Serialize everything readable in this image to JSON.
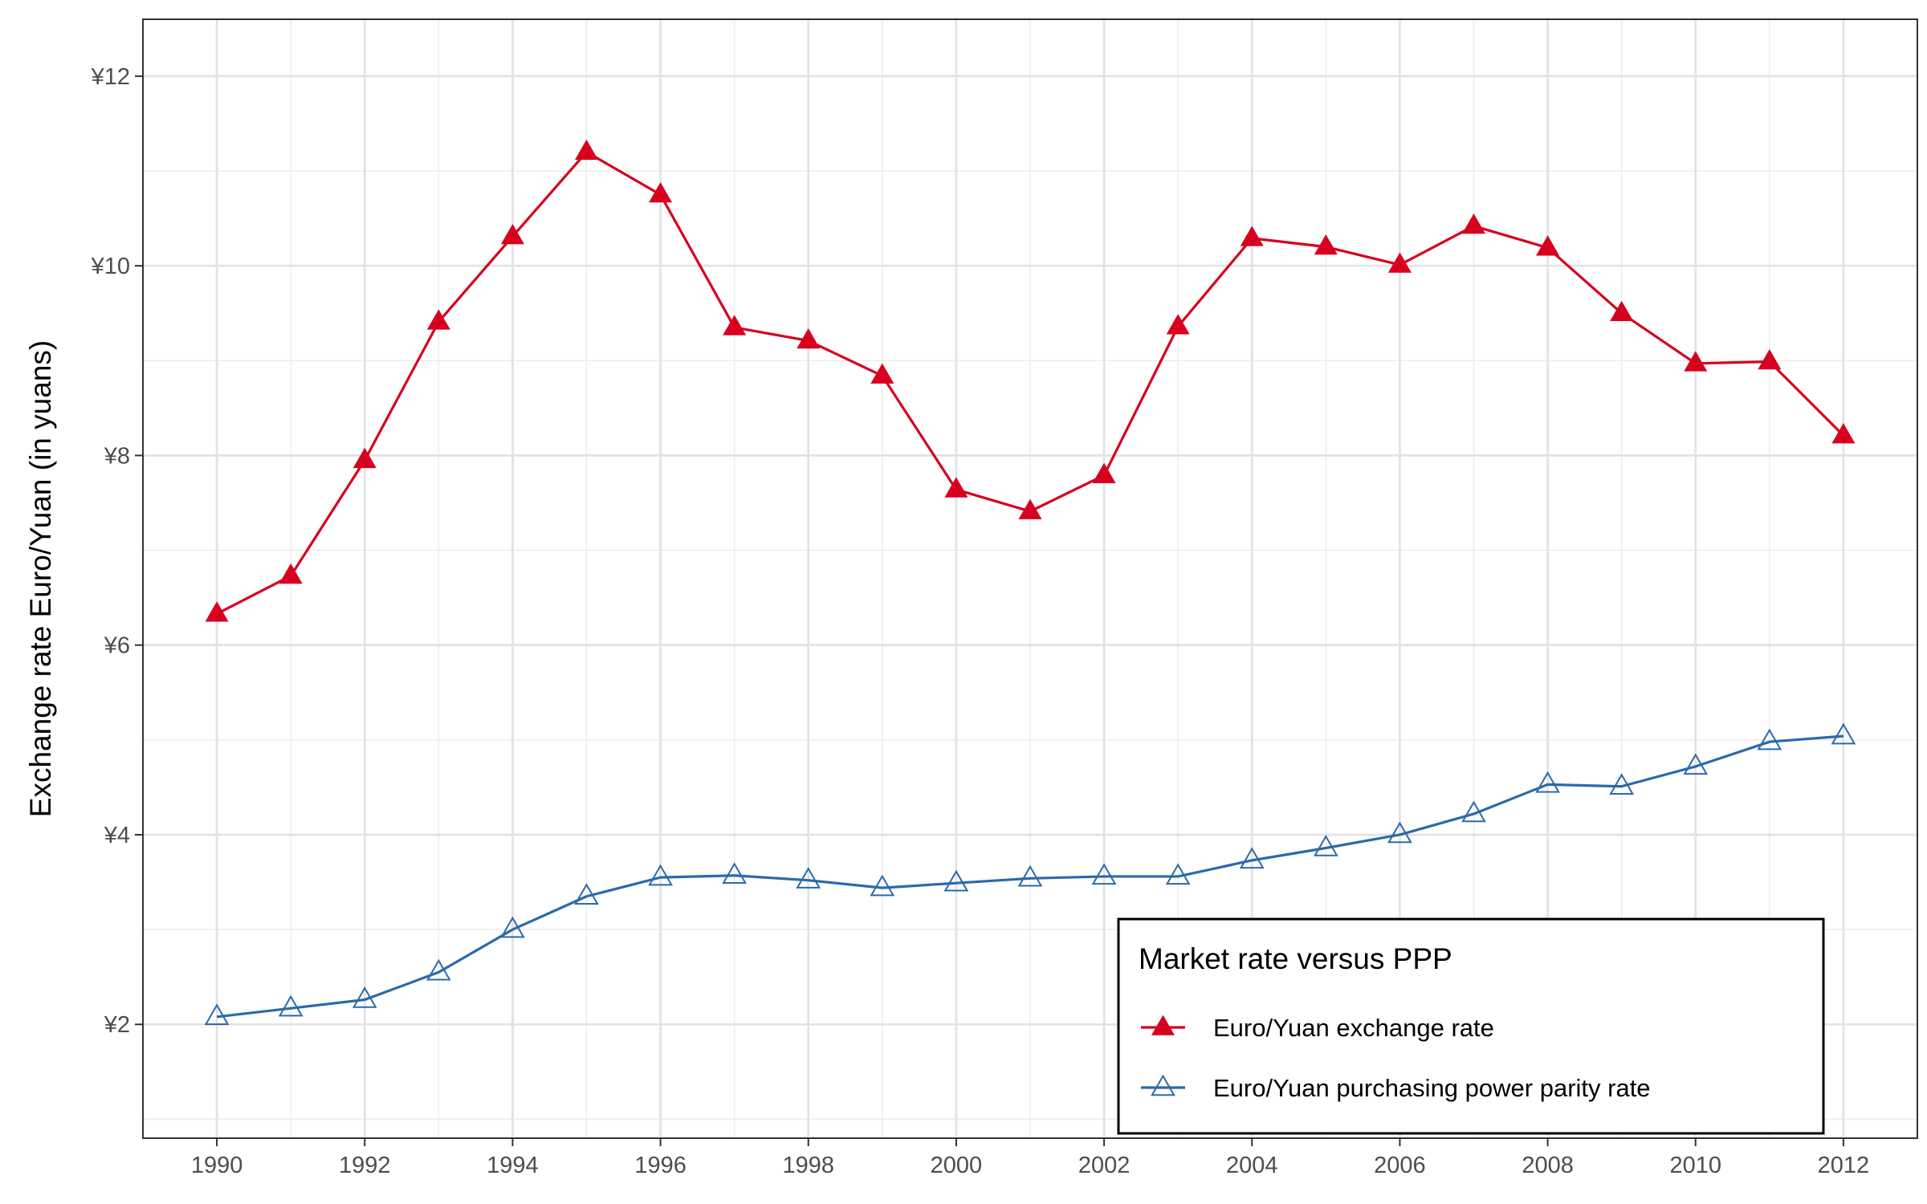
{
  "chart_data": {
    "type": "line",
    "title": "",
    "xlabel": "",
    "ylabel": "Exchange rate Euro/Yuan (in yuans)",
    "x": [
      1990,
      1991,
      1992,
      1993,
      1994,
      1995,
      1996,
      1997,
      1998,
      1999,
      2000,
      2001,
      2002,
      2003,
      2004,
      2005,
      2006,
      2007,
      2008,
      2009,
      2010,
      2011,
      2012
    ],
    "xlim": [
      1989,
      2013
    ],
    "ylim": [
      0.8,
      12.6
    ],
    "x_ticks": [
      1990,
      1992,
      1994,
      1996,
      1998,
      2000,
      2002,
      2004,
      2006,
      2008,
      2010,
      2012
    ],
    "x_tick_labels": [
      "1990",
      "1992",
      "1994",
      "1996",
      "1998",
      "2000",
      "2002",
      "2004",
      "2006",
      "2008",
      "2010",
      "2012"
    ],
    "y_ticks": [
      2,
      4,
      6,
      8,
      10,
      12
    ],
    "y_tick_labels": [
      "¥2",
      "¥4",
      "¥6",
      "¥8",
      "¥10",
      "¥12"
    ],
    "grid": true,
    "legend": {
      "title": "Market rate versus PPP",
      "position": "bottom-right"
    },
    "series": [
      {
        "name": "Euro/Yuan exchange rate",
        "color": "#d7001f",
        "marker": "filled-triangle",
        "values": [
          6.33,
          6.73,
          7.95,
          9.41,
          10.31,
          11.2,
          10.75,
          9.35,
          9.21,
          8.84,
          7.64,
          7.41,
          7.79,
          9.36,
          10.29,
          10.2,
          10.01,
          10.42,
          10.19,
          9.5,
          8.97,
          8.99,
          8.21
        ]
      },
      {
        "name": "Euro/Yuan purchasing power parity rate",
        "color": "#2b6aaa",
        "marker": "open-triangle",
        "values": [
          2.08,
          2.17,
          2.26,
          2.55,
          3.0,
          3.35,
          3.55,
          3.57,
          3.52,
          3.44,
          3.49,
          3.54,
          3.56,
          3.56,
          3.73,
          3.86,
          4.0,
          4.22,
          4.53,
          4.51,
          4.72,
          4.98,
          5.04
        ]
      }
    ]
  }
}
